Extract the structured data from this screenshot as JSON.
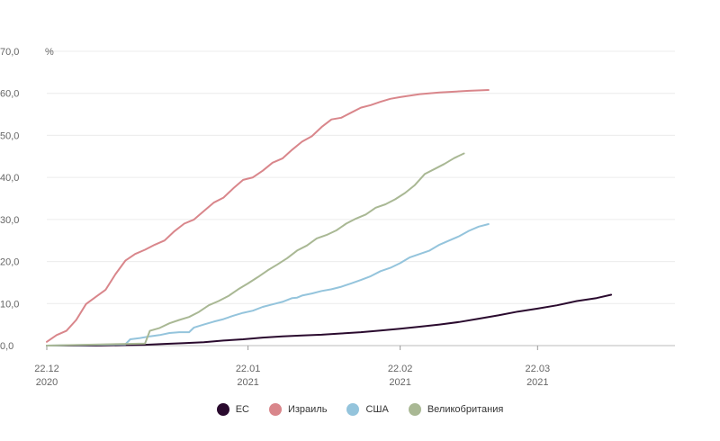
{
  "chart_data": {
    "type": "line",
    "unit_label": "%",
    "ylim": [
      0,
      70
    ],
    "yticks": [
      "0,0",
      "10,0",
      "20,0",
      "30,0",
      "40,0",
      "50,0",
      "60,0",
      "70,0"
    ],
    "xticks": [
      {
        "day": 0,
        "line1": "22.12",
        "line2": "2020"
      },
      {
        "day": 41,
        "line1": "22.01",
        "line2": "2021"
      },
      {
        "day": 72,
        "line1": "22.02",
        "line2": "2021"
      },
      {
        "day": 100,
        "line1": "22.03",
        "line2": "2021"
      }
    ],
    "grid": true,
    "legend_position": "bottom-center",
    "series": [
      {
        "name": "ЕС",
        "color": "#2a0a2e",
        "points": [
          [
            0,
            0
          ],
          [
            10,
            0
          ],
          [
            16,
            0.1
          ],
          [
            20,
            0.2
          ],
          [
            24,
            0.4
          ],
          [
            28,
            0.6
          ],
          [
            32,
            0.8
          ],
          [
            36,
            1.2
          ],
          [
            40,
            1.5
          ],
          [
            44,
            1.9
          ],
          [
            48,
            2.2
          ],
          [
            52,
            2.4
          ],
          [
            56,
            2.6
          ],
          [
            60,
            2.9
          ],
          [
            64,
            3.2
          ],
          [
            68,
            3.6
          ],
          [
            72,
            4.0
          ],
          [
            76,
            4.5
          ],
          [
            80,
            5.0
          ],
          [
            84,
            5.6
          ],
          [
            88,
            6.4
          ],
          [
            92,
            7.2
          ],
          [
            96,
            8.1
          ],
          [
            100,
            8.8
          ],
          [
            104,
            9.6
          ],
          [
            108,
            10.6
          ],
          [
            112,
            11.3
          ],
          [
            115,
            12.1
          ]
        ]
      },
      {
        "name": "Израиль",
        "color": "#d9868b",
        "points": [
          [
            0,
            0.9
          ],
          [
            2,
            2.5
          ],
          [
            4,
            3.5
          ],
          [
            6,
            6.1
          ],
          [
            8,
            9.9
          ],
          [
            10,
            11.6
          ],
          [
            12,
            13.3
          ],
          [
            14,
            17
          ],
          [
            16,
            20.2
          ],
          [
            18,
            21.8
          ],
          [
            20,
            22.8
          ],
          [
            22,
            24
          ],
          [
            24,
            25
          ],
          [
            26,
            27.2
          ],
          [
            28,
            29
          ],
          [
            30,
            30
          ],
          [
            32,
            32
          ],
          [
            34,
            34
          ],
          [
            36,
            35.2
          ],
          [
            38,
            37.4
          ],
          [
            40,
            39.4
          ],
          [
            42,
            40
          ],
          [
            44,
            41.6
          ],
          [
            46,
            43.5
          ],
          [
            48,
            44.5
          ],
          [
            50,
            46.6
          ],
          [
            52,
            48.5
          ],
          [
            54,
            49.8
          ],
          [
            56,
            52
          ],
          [
            58,
            53.8
          ],
          [
            60,
            54.2
          ],
          [
            62,
            55.4
          ],
          [
            64,
            56.6
          ],
          [
            66,
            57.2
          ],
          [
            68,
            58
          ],
          [
            70,
            58.7
          ],
          [
            72,
            59.1
          ],
          [
            76,
            59.8
          ],
          [
            80,
            60.2
          ],
          [
            86,
            60.6
          ],
          [
            90,
            60.8
          ]
        ]
      },
      {
        "name": "США",
        "color": "#94c4dc",
        "points": [
          [
            0,
            0
          ],
          [
            16,
            0.3
          ],
          [
            17,
            1.5
          ],
          [
            19,
            1.8
          ],
          [
            21,
            2.2
          ],
          [
            23,
            2.5
          ],
          [
            25,
            3
          ],
          [
            27,
            3.2
          ],
          [
            29,
            3.2
          ],
          [
            30,
            4.3
          ],
          [
            32,
            5
          ],
          [
            34,
            5.7
          ],
          [
            36,
            6.3
          ],
          [
            38,
            7.1
          ],
          [
            40,
            7.8
          ],
          [
            42,
            8.3
          ],
          [
            44,
            9.2
          ],
          [
            46,
            9.8
          ],
          [
            48,
            10.4
          ],
          [
            50,
            11.3
          ],
          [
            51,
            11.4
          ],
          [
            52,
            11.9
          ],
          [
            54,
            12.4
          ],
          [
            56,
            13
          ],
          [
            58,
            13.4
          ],
          [
            60,
            14
          ],
          [
            62,
            14.8
          ],
          [
            64,
            15.6
          ],
          [
            66,
            16.5
          ],
          [
            68,
            17.7
          ],
          [
            70,
            18.5
          ],
          [
            72,
            19.6
          ],
          [
            74,
            21
          ],
          [
            76,
            21.8
          ],
          [
            78,
            22.6
          ],
          [
            80,
            24
          ],
          [
            82,
            25
          ],
          [
            84,
            26
          ],
          [
            86,
            27.3
          ],
          [
            88,
            28.3
          ],
          [
            90,
            28.9
          ]
        ]
      },
      {
        "name": "Великобритания",
        "color": "#a9b894",
        "points": [
          [
            0,
            0
          ],
          [
            20,
            0.5
          ],
          [
            21,
            3.5
          ],
          [
            23,
            4.2
          ],
          [
            25,
            5.3
          ],
          [
            27,
            6.1
          ],
          [
            29,
            6.8
          ],
          [
            31,
            8
          ],
          [
            33,
            9.6
          ],
          [
            35,
            10.6
          ],
          [
            37,
            11.8
          ],
          [
            39,
            13.4
          ],
          [
            41,
            14.8
          ],
          [
            43,
            16.3
          ],
          [
            45,
            17.9
          ],
          [
            47,
            19.3
          ],
          [
            49,
            20.8
          ],
          [
            51,
            22.6
          ],
          [
            53,
            23.8
          ],
          [
            55,
            25.5
          ],
          [
            57,
            26.3
          ],
          [
            59,
            27.4
          ],
          [
            61,
            29
          ],
          [
            63,
            30.2
          ],
          [
            65,
            31.2
          ],
          [
            67,
            32.8
          ],
          [
            69,
            33.6
          ],
          [
            71,
            34.8
          ],
          [
            73,
            36.3
          ],
          [
            75,
            38.2
          ],
          [
            77,
            40.8
          ],
          [
            79,
            42
          ],
          [
            81,
            43.2
          ],
          [
            83,
            44.6
          ],
          [
            85,
            45.7
          ]
        ]
      }
    ]
  }
}
